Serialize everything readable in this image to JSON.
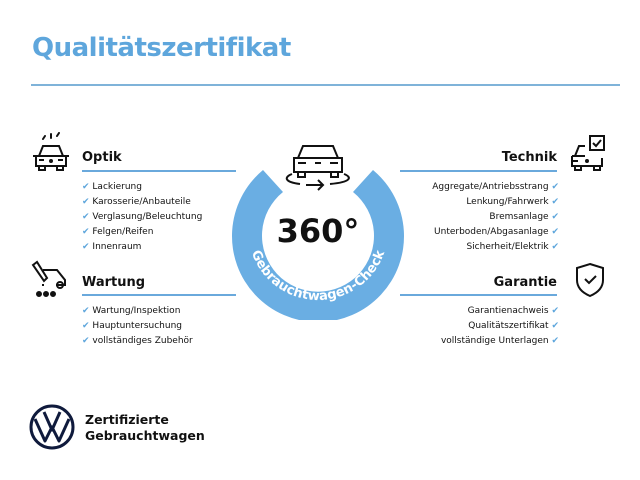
{
  "title": "Qualitätszertifikat",
  "accent_color": "#5ea6dc",
  "center": {
    "number": "360°",
    "arc_text": "Gebrauchtwagen-Check",
    "icon": "car-rotate-icon"
  },
  "sections": {
    "optik": {
      "heading": "Optik",
      "icon": "car-lights-icon",
      "items": [
        "Lackierung",
        "Karosserie/Anbauteile",
        "Verglasung/Beleuchtung",
        "Felgen/Reifen",
        "Innenraum"
      ]
    },
    "wartung": {
      "heading": "Wartung",
      "icon": "service-truck-icon",
      "items": [
        "Wartung/Inspektion",
        "Hauptuntersuchung",
        "vollständiges Zubehör"
      ]
    },
    "technik": {
      "heading": "Technik",
      "icon": "car-checklist-icon",
      "items": [
        "Aggregate/Antriebsstrang",
        "Lenkung/Fahrwerk",
        "Bremsanlage",
        "Unterboden/Abgasanlage",
        "Sicherheit/Elektrik"
      ]
    },
    "garantie": {
      "heading": "Garantie",
      "icon": "shield-check-icon",
      "items": [
        "Garantienachweis",
        "Qualitätszertifikat",
        "vollständige Unterlagen"
      ]
    }
  },
  "check_mark": "✔",
  "footer": {
    "line1": "Zertifizierte",
    "line2": "Gebrauchtwagen",
    "logo": "vw-logo"
  }
}
